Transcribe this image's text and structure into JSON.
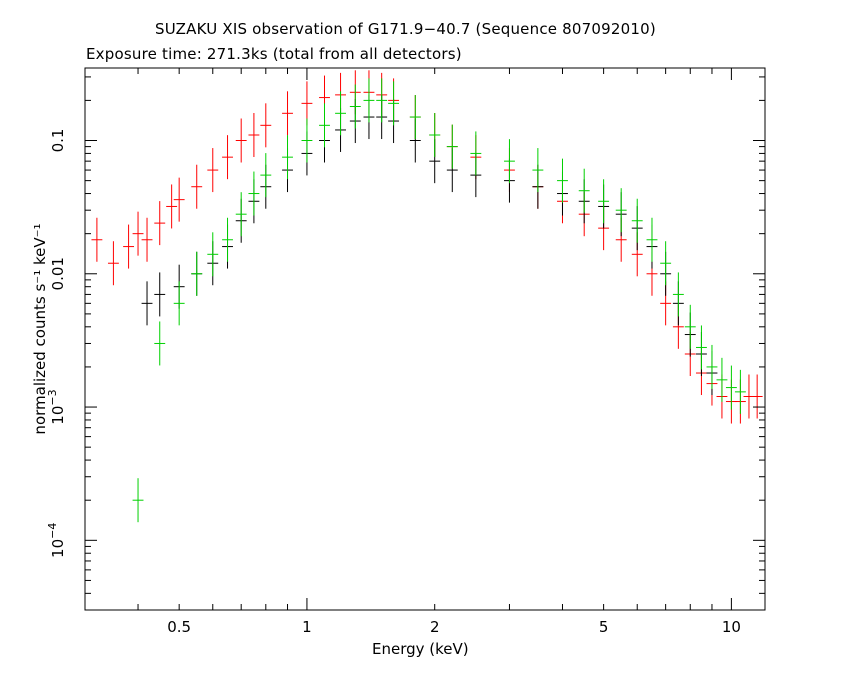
{
  "chart_data": {
    "type": "scatter",
    "title": "SUZAKU XIS observation of G171.9−40.7 (Sequence 807092010)",
    "subtitle": "Exposure time: 271.3ks (total from all detectors)",
    "xlabel": "Energy (keV)",
    "ylabel": "normalized counts s⁻¹ keV⁻¹",
    "xscale": "log",
    "yscale": "log",
    "xlim": [
      0.3,
      12
    ],
    "ylim": [
      3e-05,
      0.35
    ],
    "x_ticks": [
      {
        "value": 0.5,
        "label": "0.5"
      },
      {
        "value": 1,
        "label": "1"
      },
      {
        "value": 2,
        "label": "2"
      },
      {
        "value": 5,
        "label": "5"
      },
      {
        "value": 10,
        "label": "10"
      }
    ],
    "y_ticks": [
      {
        "value": 0.1,
        "label": "0.1",
        "sup": ""
      },
      {
        "value": 0.01,
        "label": "0.01",
        "sup": ""
      },
      {
        "value": 0.001,
        "label": "10",
        "sup": "−3"
      },
      {
        "value": 0.0001,
        "label": "10",
        "sup": "−4"
      }
    ],
    "grid": false,
    "legend": "none",
    "series": [
      {
        "color": "#ff0000",
        "points": [
          [
            0.32,
            0.018
          ],
          [
            0.35,
            0.012
          ],
          [
            0.38,
            0.016
          ],
          [
            0.4,
            0.02
          ],
          [
            0.42,
            0.018
          ],
          [
            0.45,
            0.024
          ],
          [
            0.48,
            0.032
          ],
          [
            0.5,
            0.036
          ],
          [
            0.55,
            0.045
          ],
          [
            0.6,
            0.06
          ],
          [
            0.65,
            0.075
          ],
          [
            0.7,
            0.1
          ],
          [
            0.75,
            0.11
          ],
          [
            0.8,
            0.13
          ],
          [
            0.9,
            0.16
          ],
          [
            1.0,
            0.19
          ],
          [
            1.1,
            0.21
          ],
          [
            1.2,
            0.22
          ],
          [
            1.3,
            0.23
          ],
          [
            1.4,
            0.23
          ],
          [
            1.5,
            0.22
          ],
          [
            1.6,
            0.2
          ],
          [
            1.8,
            0.15
          ],
          [
            2.0,
            0.11
          ],
          [
            2.2,
            0.09
          ],
          [
            2.5,
            0.075
          ],
          [
            3.0,
            0.06
          ],
          [
            3.5,
            0.045
          ],
          [
            4.0,
            0.035
          ],
          [
            4.5,
            0.028
          ],
          [
            5.0,
            0.022
          ],
          [
            5.5,
            0.018
          ],
          [
            6.0,
            0.014
          ],
          [
            6.5,
            0.01
          ],
          [
            7.0,
            0.006
          ],
          [
            7.5,
            0.004
          ],
          [
            8.0,
            0.0025
          ],
          [
            8.5,
            0.0018
          ],
          [
            9.0,
            0.0015
          ],
          [
            9.5,
            0.0012
          ],
          [
            10.0,
            0.0011
          ],
          [
            10.5,
            0.0011
          ],
          [
            11.0,
            0.0012
          ],
          [
            11.5,
            0.0012
          ]
        ]
      },
      {
        "color": "#000000",
        "points": [
          [
            0.42,
            0.006
          ],
          [
            0.45,
            0.007
          ],
          [
            0.5,
            0.008
          ],
          [
            0.55,
            0.01
          ],
          [
            0.6,
            0.012
          ],
          [
            0.65,
            0.016
          ],
          [
            0.7,
            0.025
          ],
          [
            0.75,
            0.035
          ],
          [
            0.8,
            0.045
          ],
          [
            0.9,
            0.06
          ],
          [
            1.0,
            0.08
          ],
          [
            1.1,
            0.1
          ],
          [
            1.2,
            0.12
          ],
          [
            1.3,
            0.14
          ],
          [
            1.4,
            0.15
          ],
          [
            1.5,
            0.15
          ],
          [
            1.6,
            0.14
          ],
          [
            1.8,
            0.1
          ],
          [
            2.0,
            0.07
          ],
          [
            2.2,
            0.06
          ],
          [
            2.5,
            0.055
          ],
          [
            3.0,
            0.05
          ],
          [
            3.5,
            0.045
          ],
          [
            4.0,
            0.04
          ],
          [
            4.5,
            0.035
          ],
          [
            5.0,
            0.032
          ],
          [
            5.5,
            0.028
          ],
          [
            6.0,
            0.022
          ],
          [
            6.5,
            0.016
          ],
          [
            7.0,
            0.01
          ],
          [
            7.5,
            0.006
          ],
          [
            8.0,
            0.0035
          ],
          [
            8.5,
            0.0025
          ],
          [
            9.0,
            0.0018
          ]
        ]
      },
      {
        "color": "#00d000",
        "points": [
          [
            0.4,
            0.0002
          ],
          [
            0.45,
            0.003
          ],
          [
            0.5,
            0.006
          ],
          [
            0.55,
            0.01
          ],
          [
            0.6,
            0.014
          ],
          [
            0.65,
            0.018
          ],
          [
            0.7,
            0.028
          ],
          [
            0.75,
            0.04
          ],
          [
            0.8,
            0.055
          ],
          [
            0.9,
            0.075
          ],
          [
            1.0,
            0.1
          ],
          [
            1.1,
            0.13
          ],
          [
            1.2,
            0.16
          ],
          [
            1.3,
            0.18
          ],
          [
            1.4,
            0.2
          ],
          [
            1.5,
            0.2
          ],
          [
            1.6,
            0.19
          ],
          [
            1.8,
            0.15
          ],
          [
            2.0,
            0.11
          ],
          [
            2.2,
            0.09
          ],
          [
            2.5,
            0.08
          ],
          [
            3.0,
            0.07
          ],
          [
            3.5,
            0.06
          ],
          [
            4.0,
            0.05
          ],
          [
            4.5,
            0.042
          ],
          [
            5.0,
            0.035
          ],
          [
            5.5,
            0.03
          ],
          [
            6.0,
            0.025
          ],
          [
            6.5,
            0.018
          ],
          [
            7.0,
            0.012
          ],
          [
            7.5,
            0.007
          ],
          [
            8.0,
            0.004
          ],
          [
            8.5,
            0.0028
          ],
          [
            9.0,
            0.002
          ],
          [
            9.5,
            0.0016
          ],
          [
            10.0,
            0.0014
          ],
          [
            10.5,
            0.0013
          ]
        ]
      }
    ]
  }
}
